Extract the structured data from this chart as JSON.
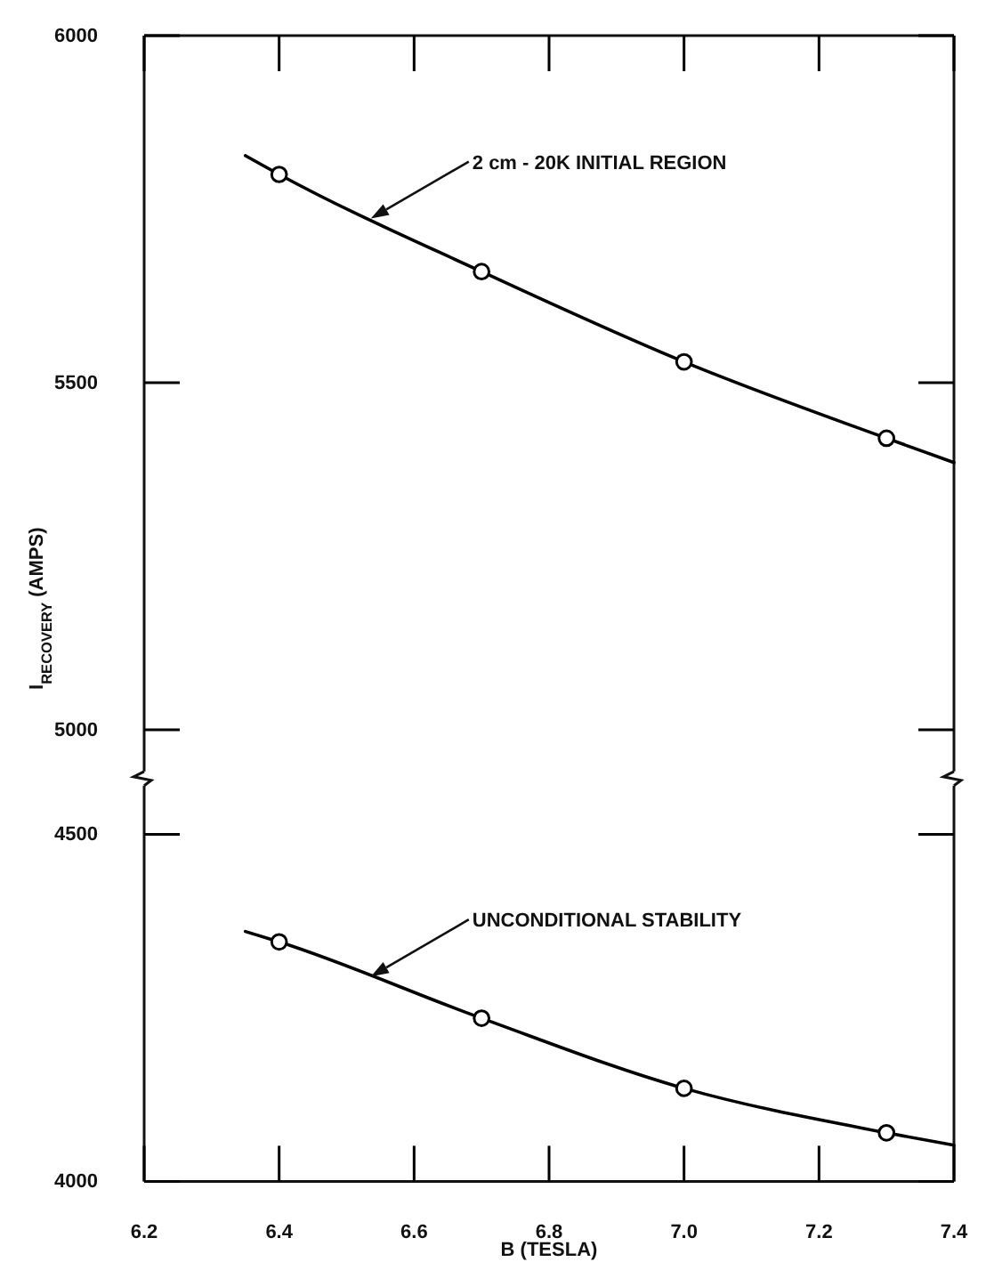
{
  "chart_data": [
    {
      "type": "line",
      "ylabel": "I$_{RECOVERY}$ (AMPS)",
      "xlim": [
        6.2,
        7.4
      ],
      "xticks": [
        6.2,
        6.4,
        6.6,
        6.8,
        7.0,
        7.2,
        7.4
      ],
      "ylim": [
        4940,
        6000
      ],
      "yticks": [
        5000,
        5500,
        6000
      ],
      "tick_labels": "y",
      "series": [
        {
          "type": "line",
          "color": "#000000",
          "marker": "none",
          "x": [
            6.35,
            6.4,
            6.7,
            7.0,
            7.3,
            7.4
          ],
          "values": [
            5827,
            5800,
            5660,
            5530,
            5420,
            5385
          ]
        },
        {
          "type": "scatter",
          "color": "#000000",
          "marker": "circle",
          "x": [
            6.4,
            6.7,
            7.0,
            7.3
          ],
          "values": [
            5800,
            5660,
            5530,
            5420
          ]
        }
      ],
      "annotations": [
        "2 cm - 20K  INITIAL REGION"
      ]
    },
    {
      "type": "line",
      "xlabel": "B (TESLA)",
      "xlim": [
        6.2,
        7.4
      ],
      "xticks": [
        6.2,
        6.4,
        6.6,
        6.8,
        {
          "value": 7,
          "label": "7.0"
        },
        7.2,
        7.4
      ],
      "ylim": [
        4000,
        4570
      ],
      "yticks": [
        4000,
        4500
      ],
      "series": [
        {
          "type": "line",
          "color": "#000000",
          "marker": "none",
          "x": [
            6.35,
            6.4,
            6.7,
            7.0,
            7.3,
            7.4
          ],
          "values": [
            4360,
            4345,
            4235,
            4134,
            4070,
            4052
          ]
        },
        {
          "type": "scatter",
          "color": "#000000",
          "marker": "circle",
          "x": [
            6.4,
            6.7,
            7.0,
            7.3
          ],
          "values": [
            4345,
            4235,
            4134,
            4070
          ]
        }
      ],
      "annotations": [
        "UNCONDITIONAL STABILITY"
      ]
    }
  ]
}
